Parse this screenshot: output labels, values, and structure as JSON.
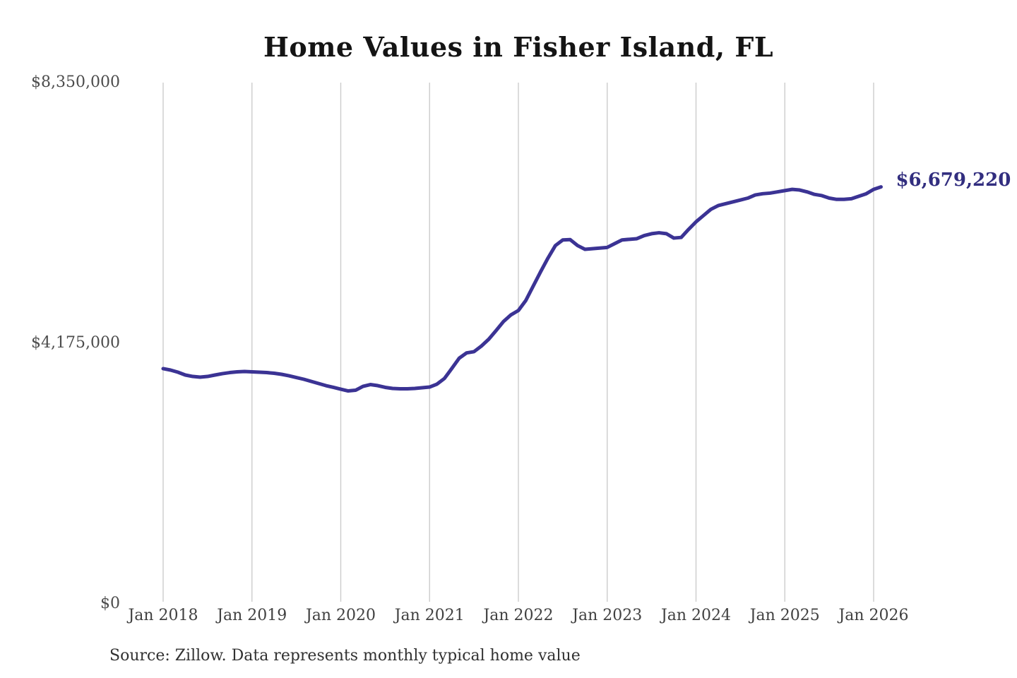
{
  "title": "Home Values in Fisher Island, FL",
  "end_label": "$6,679,220",
  "source_note": "Source: Zillow. Data represents monthly typical home value",
  "colors": {
    "line": "#3b3394",
    "end_label": "#322e7f",
    "grid": "#cccccc"
  },
  "chart_data": {
    "type": "line",
    "title": "Home Values in Fisher Island, FL",
    "xlabel": "",
    "ylabel": "",
    "ylim": [
      0,
      8350000
    ],
    "grid": "vertical-only",
    "legend_position": "none",
    "x_tick_labels": [
      "Jan 2018",
      "Jan 2019",
      "Jan 2020",
      "Jan 2021",
      "Jan 2022",
      "Jan 2023",
      "Jan 2024",
      "Jan 2025",
      "Jan 2026"
    ],
    "y_ticks": [
      {
        "value": 0,
        "label": "$0"
      },
      {
        "value": 4175000,
        "label": "$4,175,000"
      },
      {
        "value": 8350000,
        "label": "$8,350,000"
      }
    ],
    "annotation": {
      "text": "$6,679,220",
      "value": 6679220
    },
    "series": [
      {
        "name": "Monthly typical home value",
        "x_start": "Jan 2018",
        "x_interval": "month",
        "x_end": "Feb 2026",
        "values": [
          3768000,
          3745000,
          3711000,
          3666000,
          3643000,
          3632000,
          3643000,
          3666000,
          3688000,
          3705000,
          3717000,
          3722000,
          3717000,
          3711000,
          3705000,
          3694000,
          3677000,
          3654000,
          3626000,
          3598000,
          3564000,
          3530000,
          3496000,
          3468000,
          3439000,
          3411000,
          3422000,
          3484000,
          3513000,
          3496000,
          3468000,
          3451000,
          3445000,
          3445000,
          3451000,
          3462000,
          3473000,
          3520000,
          3610000,
          3770000,
          3935000,
          4020000,
          4040000,
          4130000,
          4240000,
          4380000,
          4525000,
          4630000,
          4700000,
          4860000,
          5090000,
          5320000,
          5540000,
          5740000,
          5830000,
          5835000,
          5740000,
          5680000,
          5690000,
          5700000,
          5710000,
          5770000,
          5830000,
          5840000,
          5850000,
          5900000,
          5930000,
          5945000,
          5930000,
          5860000,
          5870000,
          6000000,
          6120000,
          6220000,
          6320000,
          6380000,
          6410000,
          6440000,
          6470000,
          6500000,
          6550000,
          6570000,
          6580000,
          6600000,
          6620000,
          6640000,
          6630000,
          6600000,
          6560000,
          6540000,
          6500000,
          6480000,
          6480000,
          6490000,
          6530000,
          6570000,
          6640000,
          6679220
        ]
      }
    ]
  }
}
